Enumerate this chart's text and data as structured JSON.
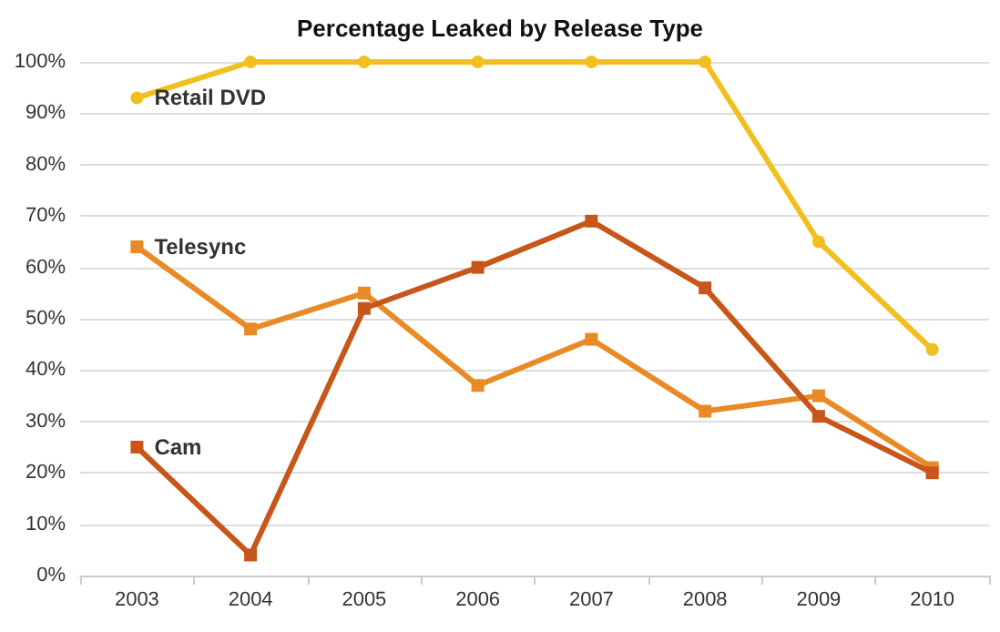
{
  "chart_data": {
    "type": "line",
    "title": "Percentage Leaked by Release Type",
    "categories": [
      "2003",
      "2004",
      "2005",
      "2006",
      "2007",
      "2008",
      "2009",
      "2010"
    ],
    "series": [
      {
        "name": "Retail DVD",
        "color": "#f0c020",
        "marker": "circle",
        "values": [
          93,
          100,
          100,
          100,
          100,
          100,
          65,
          44
        ]
      },
      {
        "name": "Telesync",
        "color": "#e88a25",
        "marker": "square",
        "values": [
          64,
          48,
          55,
          37,
          46,
          32,
          35,
          21
        ]
      },
      {
        "name": "Cam",
        "color": "#c8561a",
        "marker": "square",
        "values": [
          25,
          4,
          52,
          60,
          69,
          56,
          31,
          20
        ]
      }
    ],
    "ylim": [
      0,
      100
    ],
    "yticks": [
      {
        "value": 0,
        "label": "0%"
      },
      {
        "value": 10,
        "label": "10%"
      },
      {
        "value": 20,
        "label": "20%"
      },
      {
        "value": 30,
        "label": "30%"
      },
      {
        "value": 40,
        "label": "40%"
      },
      {
        "value": 50,
        "label": "50%"
      },
      {
        "value": 60,
        "label": "60%"
      },
      {
        "value": 70,
        "label": "70%"
      },
      {
        "value": 80,
        "label": "80%"
      },
      {
        "value": 90,
        "label": "90%"
      },
      {
        "value": 100,
        "label": "100%"
      }
    ],
    "grid": "y",
    "legend": false
  }
}
